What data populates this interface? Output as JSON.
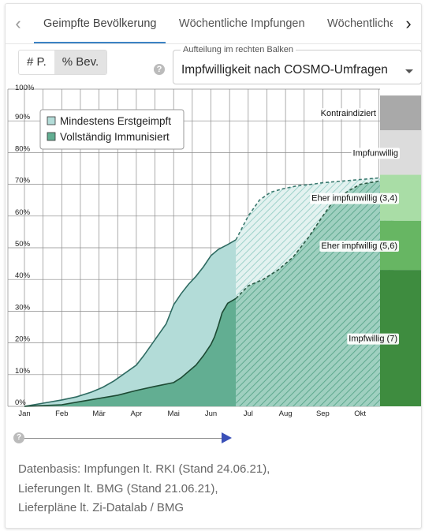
{
  "tabs": {
    "items": [
      "Geimpfte Bevölkerung",
      "Wöchentliche Impfungen",
      "Wöchentliche Lieferungen"
    ],
    "active": 0
  },
  "toggle": {
    "absolute": "# P.",
    "percent": "% Bev.",
    "selected": "percent"
  },
  "dropdown": {
    "label": "Aufteilung im rechten Balken",
    "value": "Impfwilligkeit nach COSMO-Umfragen"
  },
  "colors": {
    "first_dose": "#b3dcd8",
    "full": "#62ae92",
    "kontraindiziert": "#a9a9a9",
    "impfunwillig": "#dcdcdc",
    "eher_impfunwillig": "#a9dda6",
    "eher_impfwillig": "#67b663",
    "impfwillig": "#3e8c3f"
  },
  "chart_data": {
    "type": "area",
    "ylim": [
      0,
      100
    ],
    "y_ticks": [
      "0%",
      "10%",
      "20%",
      "30%",
      "40%",
      "50%",
      "60%",
      "70%",
      "80%",
      "90%",
      "100%"
    ],
    "x_ticks": [
      "Jan",
      "Feb",
      "Mär",
      "Apr",
      "Mai",
      "Jun",
      "Jul",
      "Aug",
      "Sep",
      "Okt"
    ],
    "grid": true,
    "legend_position": "top-left",
    "x_unit": "months since 1 Jan 2021",
    "series": [
      {
        "name": "Mindestens Erstgeimpft",
        "style": "actual",
        "x": [
          0,
          0.5,
          1,
          1.4,
          1.8,
          2.1,
          2.4,
          2.7,
          3,
          3.2,
          3.5,
          3.8,
          4,
          4.2,
          4.4,
          4.6,
          4.8,
          5,
          5.2,
          5.45,
          5.67
        ],
        "y": [
          0,
          1,
          2,
          3,
          4.5,
          6,
          8,
          10.5,
          13,
          16,
          21,
          26,
          32,
          35.5,
          38.5,
          41,
          44,
          47.5,
          49.5,
          51,
          52.5
        ]
      },
      {
        "name": "Vollständig Immunisiert",
        "style": "actual",
        "x": [
          0,
          1,
          1.5,
          2,
          2.5,
          3,
          3.5,
          4,
          4.2,
          4.4,
          4.6,
          4.8,
          5,
          5.1,
          5.2,
          5.3,
          5.45,
          5.67
        ],
        "y": [
          0,
          0.5,
          1.5,
          2.5,
          3.5,
          5,
          6.3,
          7.5,
          9,
          11,
          13,
          16,
          19.5,
          22,
          25.5,
          29.5,
          32.5,
          34
        ]
      },
      {
        "name": "Mindestens Erstgeimpft",
        "style": "forecast",
        "x": [
          5.67,
          6,
          6.3,
          6.6,
          6.9,
          7.3,
          7.7,
          8,
          8.5,
          9,
          9.5,
          9.9
        ],
        "y": [
          52.5,
          60,
          65,
          67.5,
          68.5,
          69.5,
          70,
          70.5,
          71,
          71.5,
          72,
          72
        ]
      },
      {
        "name": "Vollständig Immunisiert",
        "style": "forecast",
        "x": [
          5.67,
          6,
          6.4,
          6.8,
          7.2,
          7.6,
          8,
          8.3,
          8.7,
          9,
          9.5,
          9.9
        ],
        "y": [
          34,
          38,
          40,
          43,
          47,
          53,
          60,
          65,
          68,
          70,
          71,
          71.5
        ]
      }
    ],
    "breakdown": [
      {
        "label": "Kontraindiziert",
        "from": 87,
        "to": 98
      },
      {
        "label": "Impfunwillig",
        "from": 73,
        "to": 87
      },
      {
        "label": "Eher impfunwillig (3,4)",
        "from": 58.5,
        "to": 73
      },
      {
        "label": "Eher impfwillig (5,6)",
        "from": 43,
        "to": 58.5
      },
      {
        "label": "Impfwillig (7)",
        "from": 0,
        "to": 43
      }
    ]
  },
  "source": {
    "line1": "Datenbasis: Impfungen lt. RKI (Stand 24.06.21),",
    "line2": "Lieferungen lt. BMG (Stand 21.06.21),",
    "line3": "Lieferpläne lt. Zi-Datalab / BMG"
  }
}
